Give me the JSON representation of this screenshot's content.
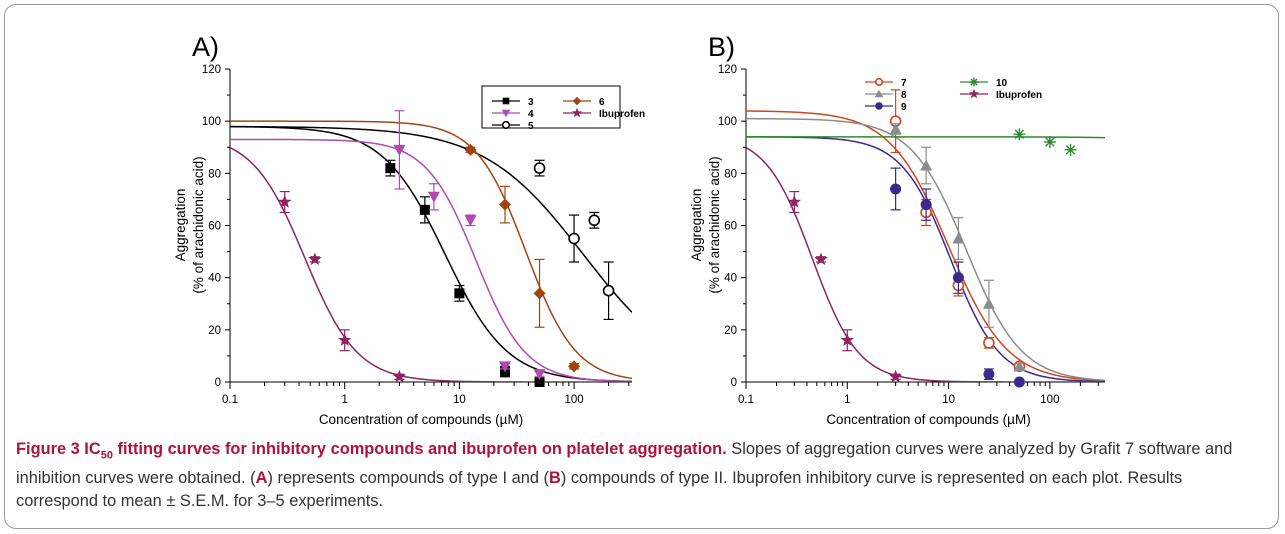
{
  "figure": {
    "lead_prefix": "Figure 3 IC",
    "lead_sub": "50",
    "lead_rest": " fitting curves for inhibitory compounds and ibuprofen on platelet aggregation.",
    "caption_a": " Slopes of aggregation curves were analyzed by Grafit 7 software and inhibition curves were obtained. (",
    "ref_a": "A",
    "caption_b": ") represents compounds of type I and (",
    "ref_b": "B",
    "caption_c": ") compounds of type II. Ibuprofen inhibitory curve is represented on each plot. Results correspond to mean ± S.E.M. for 3–5 experiments."
  },
  "chart_data": [
    {
      "panel": "A)",
      "type": "scatter",
      "xscale": "log",
      "xlim": [
        0.1,
        320
      ],
      "ylim": [
        0,
        120
      ],
      "xlabel": "Concentration of compounds (µM)",
      "ylabel": [
        "Aggregation",
        "(% of arachidonic acid)"
      ],
      "xticks": [
        0.1,
        1,
        10,
        100
      ],
      "xtick_labels": [
        "0.1",
        "1",
        "10",
        "100"
      ],
      "yticks": [
        0,
        20,
        40,
        60,
        80,
        100,
        120
      ],
      "legend": "top-right",
      "series": [
        {
          "name": "3",
          "marker": "square",
          "color": "#000000",
          "x": [
            2.5,
            5,
            10,
            25,
            50
          ],
          "y": [
            82,
            66,
            34,
            4,
            0
          ],
          "err": [
            3,
            5,
            3,
            2,
            0
          ],
          "fit": {
            "top": 98,
            "ic50": 7.5,
            "hill": 1.6
          }
        },
        {
          "name": "4",
          "marker": "triangle-down",
          "color": "#b04ab0",
          "x": [
            3,
            6,
            12.5,
            25,
            50
          ],
          "y": [
            89,
            71,
            62,
            6,
            3
          ],
          "err": [
            15,
            5,
            2,
            1,
            1
          ],
          "fit": {
            "top": 93,
            "ic50": 14,
            "hill": 2.0
          }
        },
        {
          "name": "5",
          "marker": "circle-open",
          "color": "#000000",
          "x": [
            50,
            100,
            150,
            200
          ],
          "y": [
            82,
            55,
            62,
            35
          ],
          "err": [
            3,
            9,
            3,
            11
          ],
          "fit": {
            "top": 98,
            "ic50": 120,
            "hill": 1.0
          }
        },
        {
          "name": "6",
          "marker": "diamond",
          "color": "#a2440f",
          "x": [
            12.5,
            25,
            50,
            100
          ],
          "y": [
            89,
            68,
            34,
            6
          ],
          "err": [
            1,
            7,
            13,
            1
          ],
          "fit": {
            "top": 100,
            "ic50": 38,
            "hill": 2.0
          }
        },
        {
          "name": "Ibuprofen",
          "marker": "star",
          "color": "#8e2460",
          "x": [
            0.3,
            0.55,
            1,
            3
          ],
          "y": [
            69,
            47,
            16,
            2
          ],
          "err": [
            4,
            1,
            4,
            1
          ],
          "fit": {
            "top": 95,
            "ic50": 0.45,
            "hill": 1.9
          }
        }
      ]
    },
    {
      "panel": "B)",
      "type": "scatter",
      "xscale": "log",
      "xlim": [
        0.1,
        350
      ],
      "ylim": [
        0,
        120
      ],
      "xlabel": "Concentration of  compounds (µM)",
      "ylabel": [
        "Aggregation",
        "(% of arachidonic acid)"
      ],
      "xticks": [
        0.1,
        1,
        10,
        100
      ],
      "xtick_labels": [
        "0.1",
        "1",
        "10",
        "100"
      ],
      "yticks": [
        0,
        20,
        40,
        60,
        80,
        100,
        120
      ],
      "legend": "top-center",
      "series": [
        {
          "name": "7",
          "marker": "circle-open",
          "color": "#d0451b",
          "x": [
            3,
            6,
            12.5,
            25,
            50
          ],
          "y": [
            100,
            65,
            37,
            15,
            6
          ],
          "err": [
            12,
            5,
            4,
            2,
            1
          ],
          "fit": {
            "top": 104,
            "ic50": 10,
            "hill": 1.5
          }
        },
        {
          "name": "8",
          "marker": "triangle-up",
          "color": "#8c8c8c",
          "x": [
            3,
            6,
            12.5,
            25,
            50
          ],
          "y": [
            97,
            83,
            55,
            30,
            6
          ],
          "err": [
            2,
            7,
            8,
            9,
            1
          ],
          "fit": {
            "top": 101,
            "ic50": 15,
            "hill": 1.6
          }
        },
        {
          "name": "9",
          "marker": "circle",
          "color": "#3a2a8a",
          "x": [
            3,
            6,
            12.5,
            25,
            50
          ],
          "y": [
            74,
            68,
            40,
            3,
            0
          ],
          "err": [
            8,
            6,
            6,
            2,
            0
          ],
          "fit": {
            "top": 94,
            "ic50": 10.5,
            "hill": 1.8
          }
        },
        {
          "name": "10",
          "marker": "asterisk",
          "color": "#2e8b2e",
          "x": [
            50,
            100,
            160
          ],
          "y": [
            95,
            92,
            89
          ],
          "err": [
            0,
            0,
            0
          ],
          "fit": {
            "top": 94,
            "ic50": 100000,
            "hill": 1.0
          }
        },
        {
          "name": "Ibuprofen",
          "marker": "star",
          "color": "#8e2460",
          "x": [
            0.3,
            0.55,
            1,
            3
          ],
          "y": [
            69,
            47,
            16,
            2
          ],
          "err": [
            4,
            1,
            4,
            1
          ],
          "fit": {
            "top": 95,
            "ic50": 0.45,
            "hill": 1.9
          }
        }
      ]
    }
  ]
}
